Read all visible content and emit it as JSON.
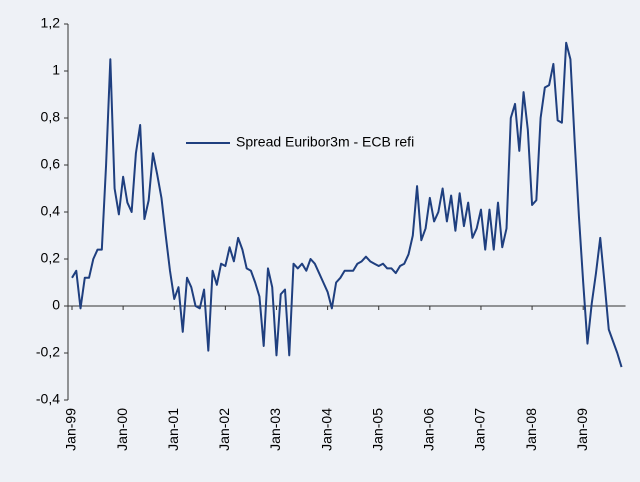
{
  "chart_data": {
    "type": "line",
    "legend": "Spread Euribor3m - ECB refi",
    "categories": [
      "Jan-99",
      null,
      null,
      null,
      null,
      null,
      null,
      null,
      null,
      null,
      null,
      null,
      "Jan-00",
      null,
      null,
      null,
      null,
      null,
      null,
      null,
      null,
      null,
      null,
      null,
      "Jan-01",
      null,
      null,
      null,
      null,
      null,
      null,
      null,
      null,
      null,
      null,
      null,
      "Jan-02",
      null,
      null,
      null,
      null,
      null,
      null,
      null,
      null,
      null,
      null,
      null,
      "Jan-03",
      null,
      null,
      null,
      null,
      null,
      null,
      null,
      null,
      null,
      null,
      null,
      "Jan-04",
      null,
      null,
      null,
      null,
      null,
      null,
      null,
      null,
      null,
      null,
      null,
      "Jan-05",
      null,
      null,
      null,
      null,
      null,
      null,
      null,
      null,
      null,
      null,
      null,
      "Jan-06",
      null,
      null,
      null,
      null,
      null,
      null,
      null,
      null,
      null,
      null,
      null,
      "Jan-07",
      null,
      null,
      null,
      null,
      null,
      null,
      null,
      null,
      null,
      null,
      null,
      "Jan-08",
      null,
      null,
      null,
      null,
      null,
      null,
      null,
      null,
      null,
      null,
      null,
      "Jan-09",
      null,
      null,
      null,
      null,
      null,
      null,
      null,
      null,
      null
    ],
    "series": [
      {
        "name": "Spread Euribor3m - ECB refi",
        "color": "#1f3f7f",
        "values": [
          0.12,
          0.15,
          -0.01,
          0.12,
          0.12,
          0.2,
          0.24,
          0.24,
          0.6,
          1.05,
          0.5,
          0.39,
          0.55,
          0.44,
          0.4,
          0.65,
          0.77,
          0.37,
          0.45,
          0.65,
          0.56,
          0.46,
          0.3,
          0.15,
          0.03,
          0.08,
          -0.11,
          0.12,
          0.08,
          0.0,
          -0.01,
          0.07,
          -0.19,
          0.15,
          0.09,
          0.18,
          0.17,
          0.25,
          0.19,
          0.29,
          0.24,
          0.16,
          0.15,
          0.1,
          0.04,
          -0.17,
          0.16,
          0.08,
          -0.21,
          0.05,
          0.07,
          -0.21,
          0.18,
          0.16,
          0.18,
          0.15,
          0.2,
          0.18,
          0.14,
          0.1,
          0.06,
          -0.01,
          0.1,
          0.12,
          0.15,
          0.15,
          0.15,
          0.18,
          0.19,
          0.21,
          0.19,
          0.18,
          0.17,
          0.18,
          0.16,
          0.16,
          0.14,
          0.17,
          0.18,
          0.22,
          0.3,
          0.51,
          0.28,
          0.33,
          0.46,
          0.36,
          0.4,
          0.5,
          0.36,
          0.47,
          0.32,
          0.48,
          0.34,
          0.44,
          0.29,
          0.33,
          0.41,
          0.24,
          0.41,
          0.24,
          0.44,
          0.25,
          0.33,
          0.8,
          0.86,
          0.66,
          0.91,
          0.75,
          0.43,
          0.45,
          0.8,
          0.93,
          0.94,
          1.03,
          0.79,
          0.78,
          1.12,
          1.05,
          0.7,
          0.38,
          0.1,
          -0.16,
          0.01,
          0.14,
          0.29,
          0.1,
          -0.1,
          -0.15,
          -0.2,
          -0.26
        ]
      }
    ],
    "ylim": [
      -0.4,
      1.2
    ],
    "yticks": [
      {
        "value": -0.4,
        "label": "-0,4"
      },
      {
        "value": -0.2,
        "label": "-0,2"
      },
      0,
      {
        "value": 0.2,
        "label": "0,2"
      },
      {
        "value": 0.4,
        "label": "0,4"
      },
      {
        "value": 0.6,
        "label": "0,6"
      },
      {
        "value": 0.8,
        "label": "0,8"
      },
      1,
      {
        "value": 1.2,
        "label": "1,2"
      }
    ],
    "grid": false
  }
}
